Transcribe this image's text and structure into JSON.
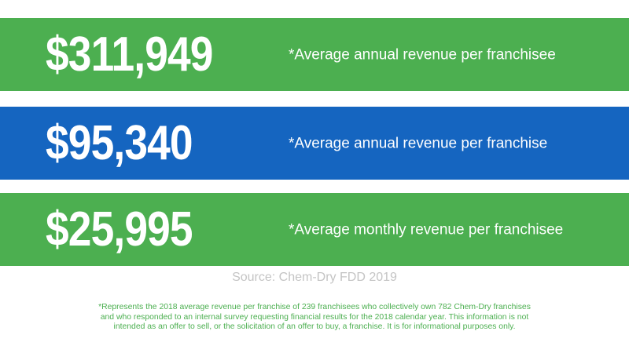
{
  "colors": {
    "green": "#4caf50",
    "blue": "#1565c0",
    "source_gray": "#c4c4c4"
  },
  "stats": [
    {
      "value": "$311,949",
      "label": "*Average annual revenue per franchisee",
      "color": "green"
    },
    {
      "value": "$95,340",
      "label": "*Average annual revenue per franchise",
      "color": "blue"
    },
    {
      "value": "$25,995",
      "label": "*Average monthly revenue per franchisee",
      "color": "green"
    }
  ],
  "source": "Source: Chem-Dry FDD 2019",
  "footnote": [
    "*Represents the 2018 average revenue per franchise of 239 franchisees who collectively own 782 Chem-Dry franchises",
    "and who responded to an internal survey requesting financial results for the 2018 calendar year. This information is not",
    "intended as an offer to sell, or the solicitation of an offer to buy, a franchise. It is for informational purposes only."
  ]
}
